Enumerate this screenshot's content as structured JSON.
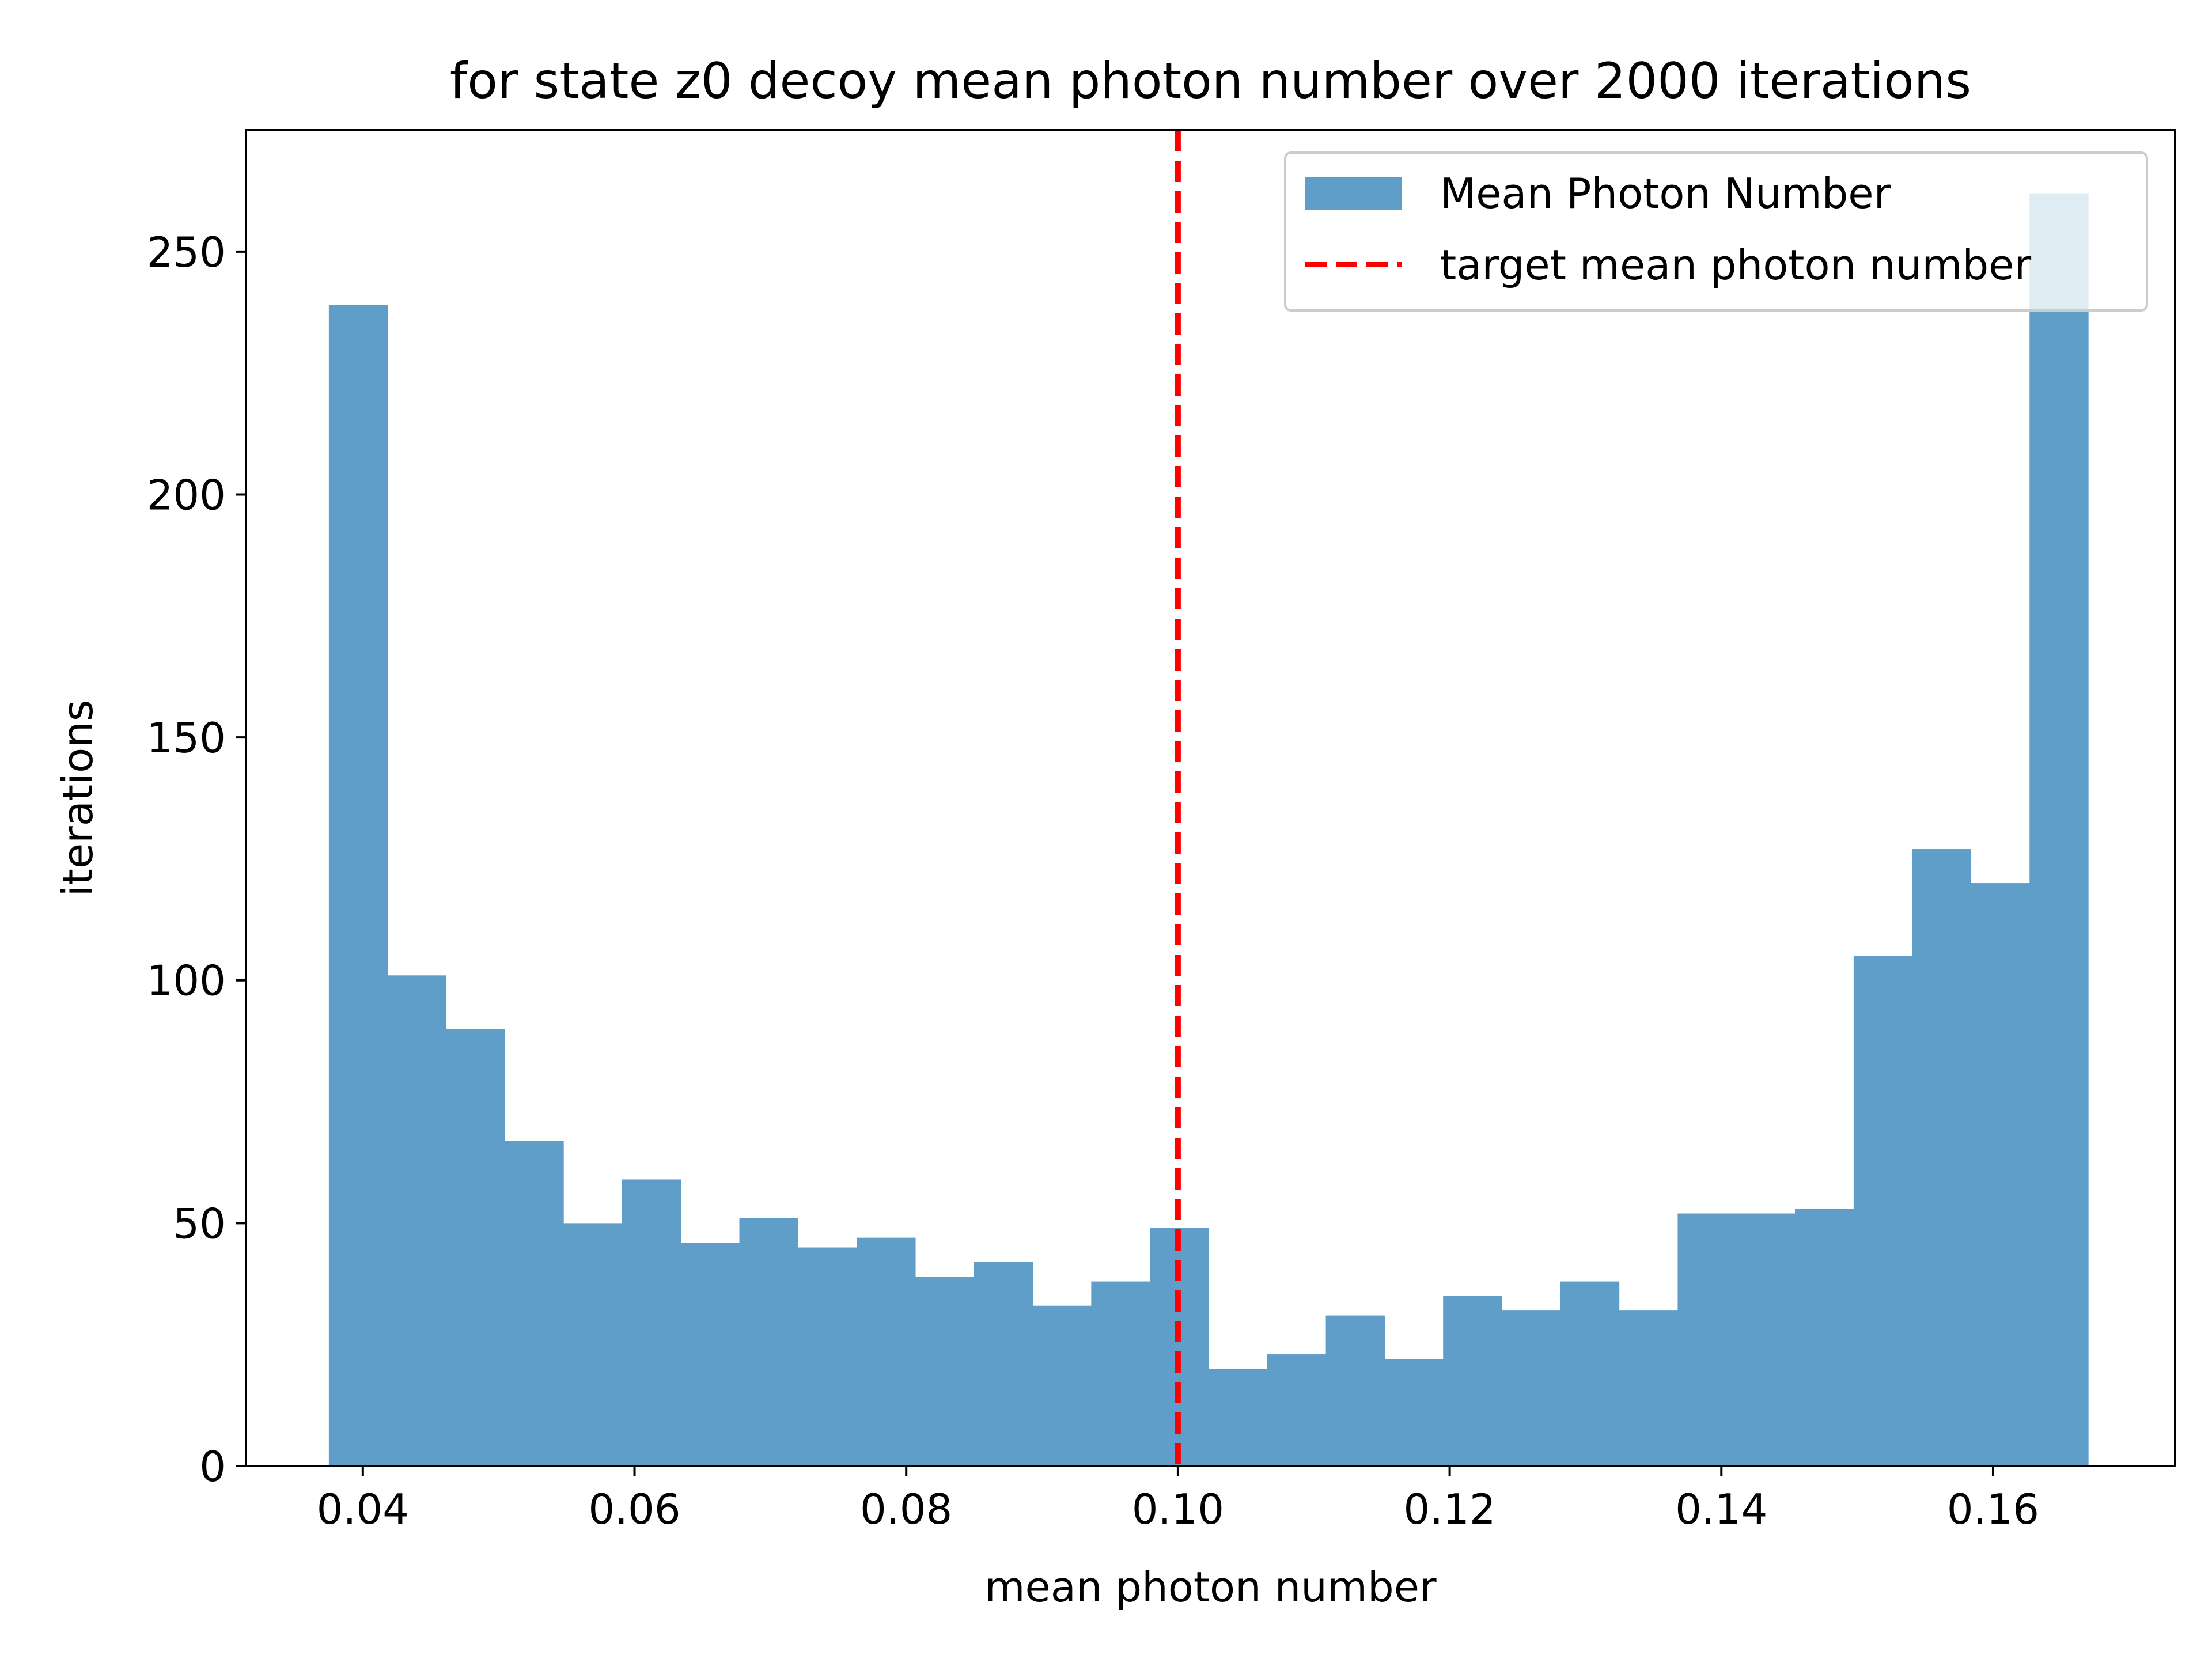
{
  "chart_data": {
    "type": "histogram",
    "title": "for state z0 decoy mean photon number over 2000 iterations",
    "xlabel": "mean photon number",
    "ylabel": "iterations",
    "xlim": [
      0.0314,
      0.1734
    ],
    "ylim": [
      0,
      275
    ],
    "xticks": [
      0.04,
      0.06,
      0.08,
      0.1,
      0.12,
      0.14,
      0.16
    ],
    "xtick_labels": [
      "0.04",
      "0.06",
      "0.08",
      "0.10",
      "0.12",
      "0.14",
      "0.16"
    ],
    "yticks": [
      0,
      50,
      100,
      150,
      200,
      250
    ],
    "ytick_labels": [
      "0",
      "50",
      "100",
      "150",
      "200",
      "250"
    ],
    "bin_start": 0.0375,
    "bin_end": 0.167,
    "bin_count": 30,
    "series": [
      {
        "name": "Mean Photon Number",
        "color": "#5f9ec9",
        "values": [
          239,
          101,
          90,
          67,
          50,
          59,
          46,
          51,
          45,
          47,
          39,
          42,
          33,
          38,
          49,
          20,
          23,
          31,
          22,
          35,
          32,
          38,
          32,
          52,
          52,
          53,
          105,
          127,
          120,
          262
        ]
      }
    ],
    "reference_line": {
      "name": "target mean photon number",
      "x": 0.1,
      "color": "#ff0000",
      "style": "dashed"
    },
    "legend": {
      "placement": "top-right",
      "entries": [
        "Mean Photon Number",
        "target mean photon number"
      ]
    },
    "grid": false
  }
}
